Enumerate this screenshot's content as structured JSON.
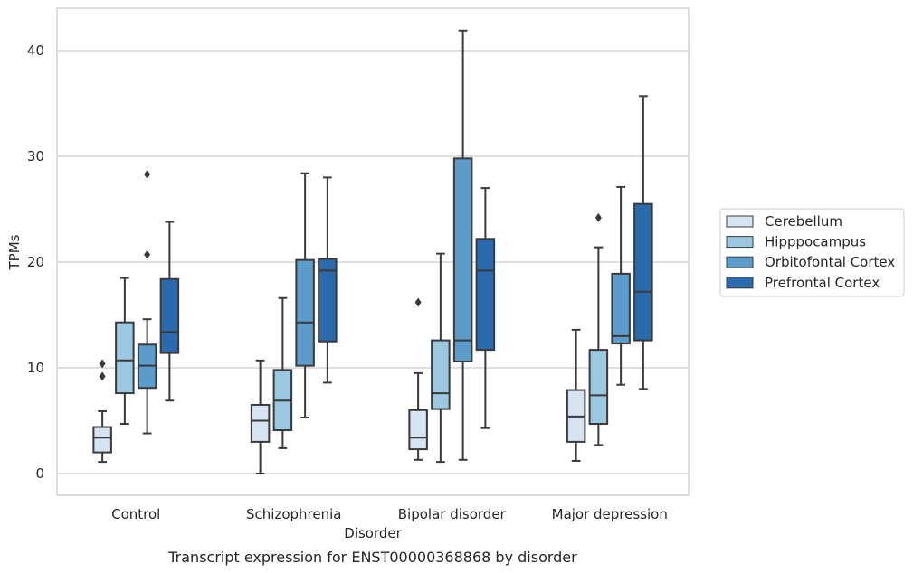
{
  "chart_data": {
    "type": "box",
    "title": "",
    "caption": "Transcript expression for ENST00000368868 by disorder",
    "xlabel": "Disorder",
    "ylabel": "TPMs",
    "ylim": [
      -2,
      44
    ],
    "yticks": [
      0,
      10,
      20,
      30,
      40
    ],
    "y_tick_labels": [
      "0",
      "10",
      "20",
      "30",
      "40"
    ],
    "grid": "horizontal",
    "legend_position": "right",
    "categories": [
      "Control",
      "Schizophrenia",
      "Bipolar disorder",
      "Major depression"
    ],
    "series": [
      {
        "name": "Cerebellum",
        "color": "#d6e4f2",
        "boxes": [
          {
            "whisker_low": 1.1,
            "q1": 2.0,
            "median": 3.4,
            "q3": 4.4,
            "whisker_high": 5.9,
            "outliers": [
              9.2,
              10.4
            ]
          },
          {
            "whisker_low": 0.0,
            "q1": 3.0,
            "median": 5.0,
            "q3": 6.5,
            "whisker_high": 10.7,
            "outliers": []
          },
          {
            "whisker_low": 1.3,
            "q1": 2.3,
            "median": 3.4,
            "q3": 6.0,
            "whisker_high": 9.5,
            "outliers": [
              16.2
            ]
          },
          {
            "whisker_low": 1.2,
            "q1": 3.0,
            "median": 5.4,
            "q3": 7.9,
            "whisker_high": 13.6,
            "outliers": []
          }
        ]
      },
      {
        "name": "Hipppocampus",
        "color": "#9cc7e0",
        "boxes": [
          {
            "whisker_low": 4.7,
            "q1": 7.6,
            "median": 10.7,
            "q3": 14.3,
            "whisker_high": 18.5,
            "outliers": []
          },
          {
            "whisker_low": 2.4,
            "q1": 4.1,
            "median": 6.9,
            "q3": 9.8,
            "whisker_high": 16.6,
            "outliers": []
          },
          {
            "whisker_low": 1.1,
            "q1": 6.1,
            "median": 7.6,
            "q3": 12.6,
            "whisker_high": 20.8,
            "outliers": []
          },
          {
            "whisker_low": 2.7,
            "q1": 4.7,
            "median": 7.4,
            "q3": 11.7,
            "whisker_high": 21.4,
            "outliers": [
              24.2
            ]
          }
        ]
      },
      {
        "name": "Orbitofontal Cortex",
        "color": "#5b9ccb",
        "boxes": [
          {
            "whisker_low": 3.8,
            "q1": 8.1,
            "median": 10.2,
            "q3": 12.2,
            "whisker_high": 14.6,
            "outliers": [
              20.7,
              28.3
            ]
          },
          {
            "whisker_low": 5.3,
            "q1": 10.2,
            "median": 14.3,
            "q3": 20.2,
            "whisker_high": 28.4,
            "outliers": []
          },
          {
            "whisker_low": 1.3,
            "q1": 10.6,
            "median": 12.6,
            "q3": 29.8,
            "whisker_high": 41.9,
            "outliers": []
          },
          {
            "whisker_low": 8.4,
            "q1": 12.3,
            "median": 13.0,
            "q3": 18.9,
            "whisker_high": 27.1,
            "outliers": []
          }
        ]
      },
      {
        "name": "Prefrontal Cortex",
        "color": "#2a6aad",
        "boxes": [
          {
            "whisker_low": 6.9,
            "q1": 11.4,
            "median": 13.4,
            "q3": 18.4,
            "whisker_high": 23.8,
            "outliers": []
          },
          {
            "whisker_low": 8.6,
            "q1": 12.5,
            "median": 19.2,
            "q3": 20.3,
            "whisker_high": 28.0,
            "outliers": []
          },
          {
            "whisker_low": 4.3,
            "q1": 11.7,
            "median": 19.2,
            "q3": 22.2,
            "whisker_high": 27.0,
            "outliers": []
          },
          {
            "whisker_low": 8.0,
            "q1": 12.6,
            "median": 17.2,
            "q3": 25.5,
            "whisker_high": 35.7,
            "outliers": []
          }
        ]
      }
    ]
  }
}
